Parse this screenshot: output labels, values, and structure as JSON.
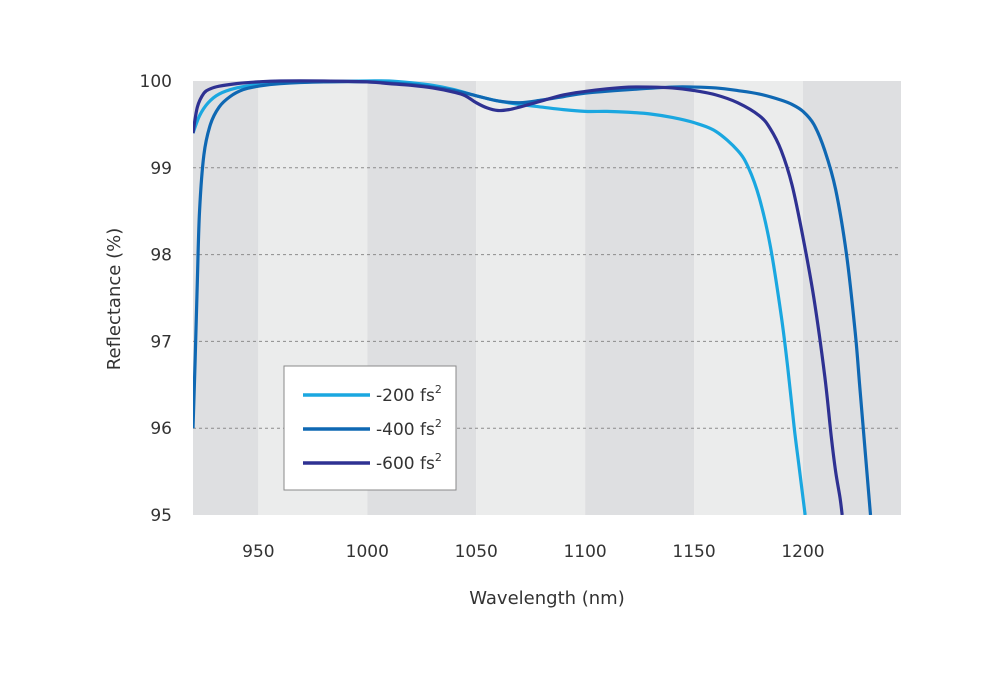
{
  "chart_data": {
    "type": "line",
    "title": "",
    "xlabel": "Wavelength (nm)",
    "ylabel": "Reflectance (%)",
    "xlim": [
      920,
      1245
    ],
    "ylim": [
      95,
      100
    ],
    "x_ticks": [
      950,
      1000,
      1050,
      1100,
      1150,
      1200
    ],
    "y_ticks": [
      95,
      96,
      97,
      98,
      99,
      100
    ],
    "grid": "horizontal dashed",
    "background_bands": "alternating light/dark gray per 50 nm",
    "legend_position": "lower-left",
    "series": [
      {
        "name": "-200 fs",
        "superscript": "2",
        "color": "#1aa7e0",
        "x": [
          920,
          923,
          927,
          932,
          940,
          950,
          960,
          975,
          1000,
          1010,
          1020,
          1030,
          1040,
          1050,
          1060,
          1070,
          1080,
          1090,
          1100,
          1110,
          1120,
          1130,
          1140,
          1150,
          1160,
          1170,
          1175,
          1180,
          1185,
          1190,
          1193,
          1196,
          1198,
          1200,
          1201
        ],
        "values": [
          99.4,
          99.6,
          99.75,
          99.85,
          99.92,
          99.96,
          99.98,
          99.99,
          100.0,
          100.0,
          99.98,
          99.95,
          99.9,
          99.83,
          99.77,
          99.73,
          99.7,
          99.67,
          99.65,
          99.65,
          99.64,
          99.62,
          99.58,
          99.52,
          99.42,
          99.2,
          99.0,
          98.65,
          98.1,
          97.3,
          96.7,
          96.0,
          95.6,
          95.2,
          95.0
        ]
      },
      {
        "name": "-400 fs",
        "superscript": "2",
        "color": "#0f68b3",
        "x": [
          920,
          921,
          922,
          923,
          925,
          928,
          932,
          937,
          943,
          950,
          960,
          980,
          1000,
          1020,
          1030,
          1040,
          1050,
          1060,
          1070,
          1080,
          1090,
          1100,
          1120,
          1140,
          1150,
          1160,
          1170,
          1180,
          1190,
          1195,
          1200,
          1205,
          1210,
          1215,
          1220,
          1224,
          1226,
          1228,
          1230,
          1231
        ],
        "values": [
          96.0,
          96.8,
          97.7,
          98.5,
          99.15,
          99.5,
          99.7,
          99.82,
          99.9,
          99.94,
          99.97,
          99.99,
          99.99,
          99.96,
          99.93,
          99.89,
          99.83,
          99.77,
          99.75,
          99.78,
          99.82,
          99.86,
          99.9,
          99.93,
          99.93,
          99.92,
          99.89,
          99.85,
          99.78,
          99.73,
          99.65,
          99.5,
          99.2,
          98.75,
          98.0,
          97.1,
          96.5,
          95.9,
          95.3,
          95.0
        ]
      },
      {
        "name": "-600 fs",
        "superscript": "2",
        "color": "#2e3192",
        "x": [
          920,
          922,
          925,
          928,
          932,
          940,
          950,
          960,
          980,
          1000,
          1010,
          1020,
          1030,
          1040,
          1045,
          1050,
          1055,
          1060,
          1065,
          1070,
          1080,
          1090,
          1100,
          1110,
          1120,
          1130,
          1140,
          1150,
          1160,
          1170,
          1180,
          1185,
          1190,
          1195,
          1200,
          1205,
          1210,
          1213,
          1215,
          1217,
          1218
        ],
        "values": [
          99.4,
          99.7,
          99.86,
          99.91,
          99.94,
          99.97,
          99.99,
          100.0,
          100.0,
          99.99,
          99.97,
          99.95,
          99.92,
          99.87,
          99.83,
          99.75,
          99.69,
          99.66,
          99.67,
          99.7,
          99.77,
          99.84,
          99.88,
          99.91,
          99.93,
          99.93,
          99.92,
          99.89,
          99.84,
          99.75,
          99.6,
          99.45,
          99.2,
          98.8,
          98.2,
          97.5,
          96.6,
          95.9,
          95.5,
          95.2,
          95.0
        ]
      }
    ]
  }
}
